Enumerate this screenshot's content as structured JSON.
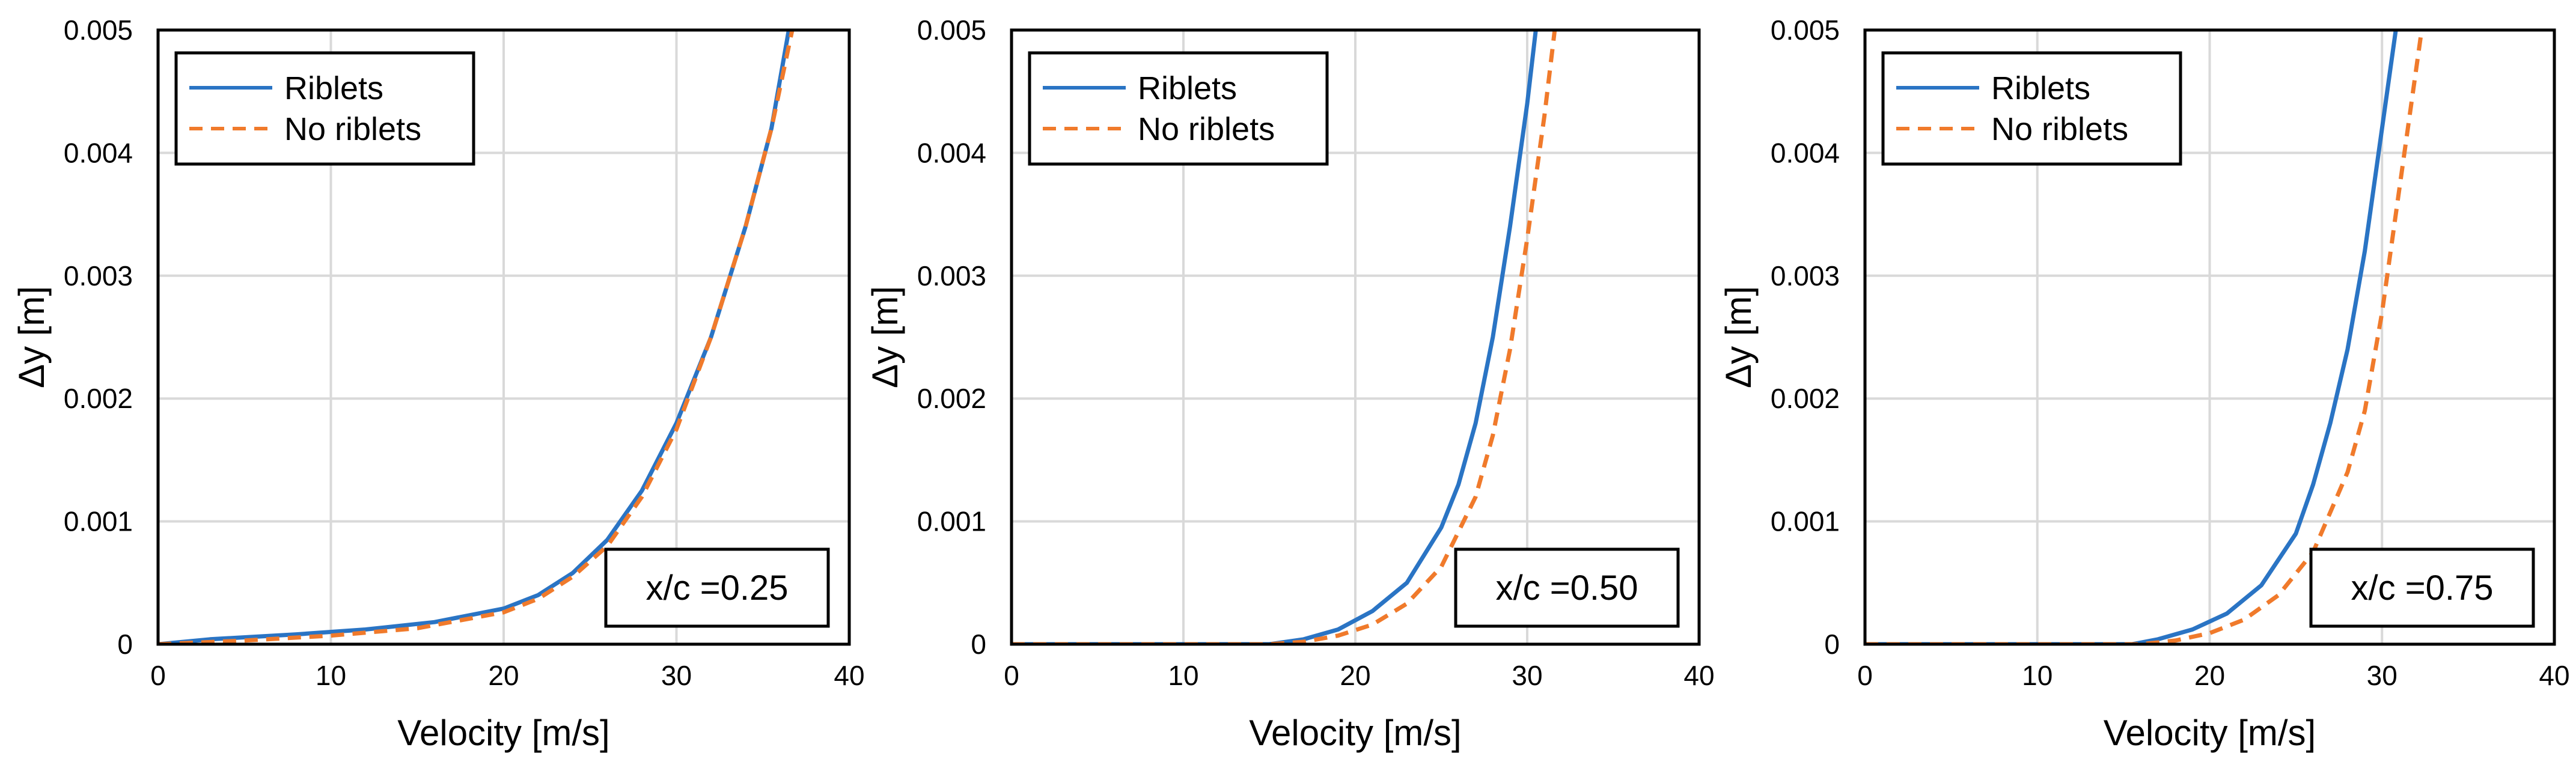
{
  "colors": {
    "riblets": "#2a74c4",
    "no_riblets": "#f07a2b"
  },
  "chart_data": [
    {
      "type": "line",
      "panel": "left",
      "annotation": "x/c =0.25",
      "xlabel": "Velocity [m/s]",
      "ylabel": "Δy [m]",
      "xlim": [
        0,
        40
      ],
      "ylim": [
        0,
        0.005
      ],
      "xticks": [
        0,
        10,
        20,
        30,
        40
      ],
      "xtick_labels": [
        "0",
        "10",
        "20",
        "30",
        "40"
      ],
      "yticks": [
        0,
        0.001,
        0.002,
        0.003,
        0.004,
        0.005
      ],
      "ytick_labels": [
        "0",
        "0.001",
        "0.002",
        "0.003",
        "0.004",
        "0.005"
      ],
      "grid": true,
      "legend_position": "top-left",
      "series": [
        {
          "name": "Riblets",
          "style": "solid",
          "x": [
            0,
            3,
            8,
            12,
            16,
            20,
            22,
            24,
            26,
            28,
            30,
            32,
            34,
            35.5,
            36.5
          ],
          "y": [
            0,
            4e-05,
            8e-05,
            0.00012,
            0.00018,
            0.00029,
            0.0004,
            0.00058,
            0.00085,
            0.00125,
            0.0018,
            0.0025,
            0.0034,
            0.0042,
            0.005
          ]
        },
        {
          "name": "No riblets",
          "style": "dashed",
          "x": [
            0,
            5,
            10,
            15,
            20,
            22,
            24,
            26,
            28,
            30,
            32,
            34,
            35.5,
            36.7
          ],
          "y": [
            0,
            3e-05,
            7e-05,
            0.00013,
            0.00026,
            0.00037,
            0.00055,
            0.0008,
            0.0012,
            0.00175,
            0.0025,
            0.0034,
            0.0042,
            0.005
          ]
        }
      ]
    },
    {
      "type": "line",
      "panel": "middle",
      "annotation": "x/c =0.50",
      "xlabel": "Velocity [m/s]",
      "ylabel": "Δy [m]",
      "xlim": [
        0,
        40
      ],
      "ylim": [
        0,
        0.005
      ],
      "xticks": [
        0,
        10,
        20,
        30,
        40
      ],
      "xtick_labels": [
        "0",
        "10",
        "20",
        "30",
        "40"
      ],
      "yticks": [
        0,
        0.001,
        0.002,
        0.003,
        0.004,
        0.005
      ],
      "ytick_labels": [
        "0",
        "0.001",
        "0.002",
        "0.003",
        "0.004",
        "0.005"
      ],
      "grid": true,
      "legend_position": "top-left",
      "series": [
        {
          "name": "Riblets",
          "style": "solid",
          "x": [
            0,
            15,
            17,
            19,
            21,
            23,
            25,
            26,
            27,
            28,
            29,
            30,
            30.5
          ],
          "y": [
            0,
            0,
            4e-05,
            0.00012,
            0.00027,
            0.0005,
            0.00095,
            0.0013,
            0.0018,
            0.0025,
            0.0034,
            0.0044,
            0.005
          ]
        },
        {
          "name": "No riblets",
          "style": "dashed",
          "x": [
            0,
            15,
            17,
            19,
            21,
            23,
            25,
            27,
            28,
            29,
            30,
            31,
            31.6
          ],
          "y": [
            0,
            0,
            2e-05,
            7e-05,
            0.00016,
            0.00033,
            0.00063,
            0.0012,
            0.0017,
            0.0024,
            0.0033,
            0.0043,
            0.005
          ]
        }
      ]
    },
    {
      "type": "line",
      "panel": "right",
      "annotation": "x/c =0.75",
      "xlabel": "Velocity [m/s]",
      "ylabel": "Δy [m]",
      "xlim": [
        0,
        40
      ],
      "ylim": [
        0,
        0.005
      ],
      "xticks": [
        0,
        10,
        20,
        30,
        40
      ],
      "xtick_labels": [
        "0",
        "10",
        "20",
        "30",
        "40"
      ],
      "yticks": [
        0,
        0.001,
        0.002,
        0.003,
        0.004,
        0.005
      ],
      "ytick_labels": [
        "0",
        "0.001",
        "0.002",
        "0.003",
        "0.004",
        "0.005"
      ],
      "grid": true,
      "legend_position": "top-left",
      "series": [
        {
          "name": "Riblets",
          "style": "solid",
          "x": [
            0,
            15.5,
            17,
            19,
            21,
            23,
            25,
            26,
            27,
            28,
            29,
            30,
            30.8
          ],
          "y": [
            0,
            0,
            4e-05,
            0.00012,
            0.00025,
            0.00048,
            0.0009,
            0.0013,
            0.0018,
            0.0024,
            0.0032,
            0.0042,
            0.005
          ]
        },
        {
          "name": "No riblets",
          "style": "dashed",
          "x": [
            0,
            16,
            18,
            20,
            22,
            24,
            26,
            28,
            29,
            30,
            31,
            32,
            32.3
          ],
          "y": [
            0,
            0,
            3e-05,
            9e-05,
            0.0002,
            0.0004,
            0.00075,
            0.0014,
            0.0019,
            0.0027,
            0.0037,
            0.0047,
            0.005
          ]
        }
      ]
    }
  ]
}
